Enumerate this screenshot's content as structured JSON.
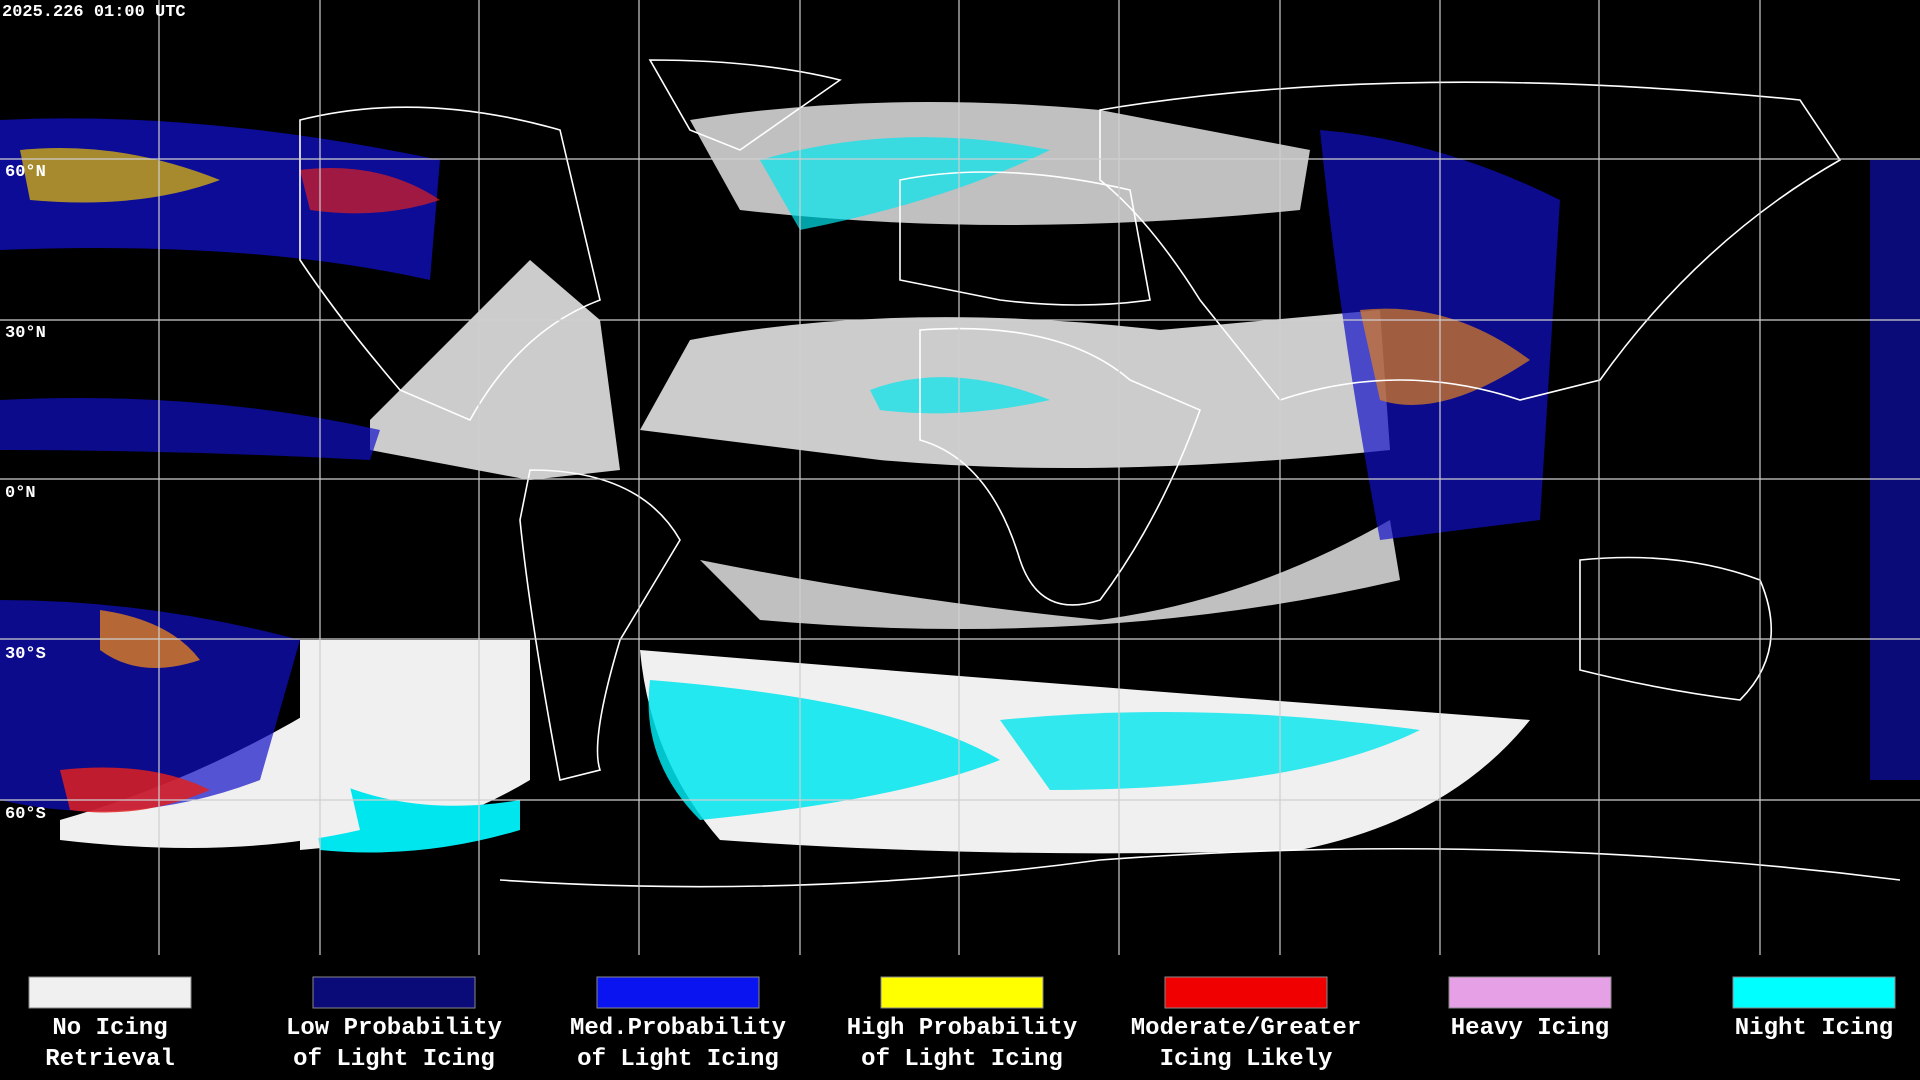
{
  "timestamp": "2025.226 01:00 UTC",
  "latitude_labels": [
    "60°N",
    "30°N",
    "0°N",
    "30°S",
    "60°S"
  ],
  "legend": [
    {
      "lines": [
        "No Icing",
        "Retrieval"
      ],
      "color": "#f0f0f0"
    },
    {
      "lines": [
        "Low Probability",
        "of Light Icing"
      ],
      "color": "#0a0a78"
    },
    {
      "lines": [
        "Med.Probability",
        "of Light Icing"
      ],
      "color": "#0a14f0"
    },
    {
      "lines": [
        "High Probability",
        "of Light Icing"
      ],
      "color": "#ffff00"
    },
    {
      "lines": [
        "Moderate/Greater",
        "Icing Likely"
      ],
      "color": "#f00000"
    },
    {
      "lines": [
        "Heavy Icing"
      ],
      "color": "#e6a0e6"
    },
    {
      "lines": [
        "Night Icing"
      ],
      "color": "#00ffff"
    }
  ]
}
